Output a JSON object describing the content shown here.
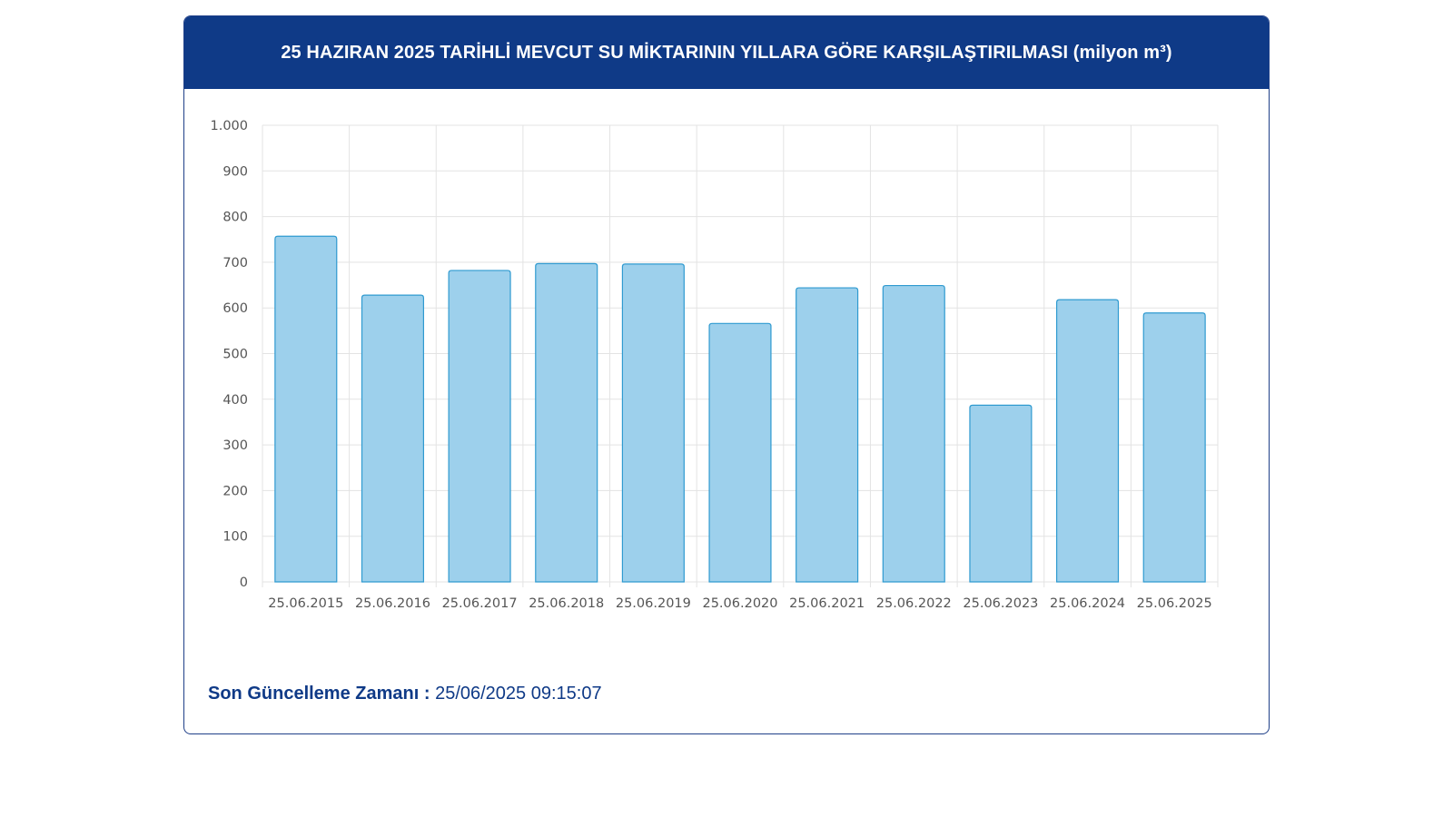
{
  "header": {
    "title": "25 HAZIRAN 2025 TARİHLİ MEVCUT SU MİKTARININ YILLARA GÖRE KARŞILAŞTIRILMASI (milyon m³)"
  },
  "footer": {
    "label": "Son Güncelleme Zamanı :",
    "value": "25/06/2025 09:15:07"
  },
  "colors": {
    "header_bg": "#0f3a87",
    "bar_fill": "#9dd0ec",
    "bar_stroke": "#2f9ad0",
    "grid": "#e3e3e3"
  },
  "chart_data": {
    "type": "bar",
    "categories": [
      "25.06.2015",
      "25.06.2016",
      "25.06.2017",
      "25.06.2018",
      "25.06.2019",
      "25.06.2020",
      "25.06.2021",
      "25.06.2022",
      "25.06.2023",
      "25.06.2024",
      "25.06.2025"
    ],
    "values": [
      757,
      628,
      682,
      697,
      696,
      566,
      644,
      649,
      387,
      618,
      589
    ],
    "ylim": [
      0,
      1000
    ],
    "yticks": [
      0,
      100,
      200,
      300,
      400,
      500,
      600,
      700,
      800,
      900,
      1000
    ],
    "ytick_labels": [
      "0",
      "100",
      "200",
      "300",
      "400",
      "500",
      "600",
      "700",
      "800",
      "900",
      "1.000"
    ],
    "grid": true,
    "legend": false
  }
}
